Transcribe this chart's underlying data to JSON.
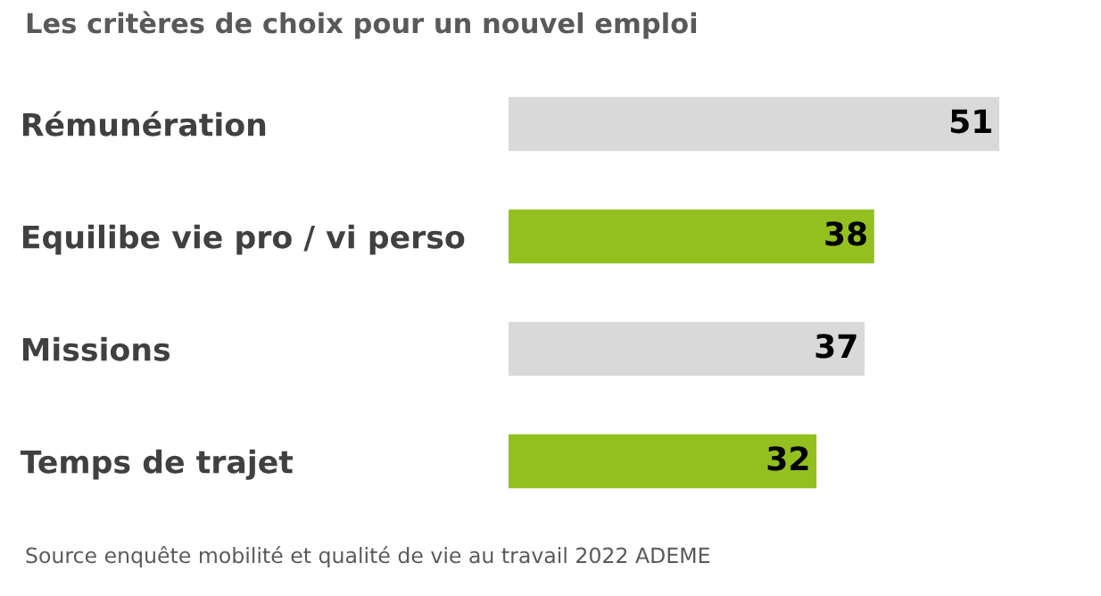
{
  "chart_data": {
    "type": "bar",
    "orientation": "horizontal",
    "title": "Les critères de choix pour un nouvel emploi",
    "categories": [
      "Rémunération",
      "Equilibe vie pro / vi perso",
      "Missions",
      "Temps de trajet"
    ],
    "values": [
      51,
      38,
      37,
      32
    ],
    "colors": [
      "#d9d9d9",
      "#93c01f",
      "#d9d9d9",
      "#93c01f"
    ],
    "data_labels": true,
    "annotations": [
      "Source enquête mobilité et qualité de vie au travail 2022 ADEME"
    ]
  }
}
